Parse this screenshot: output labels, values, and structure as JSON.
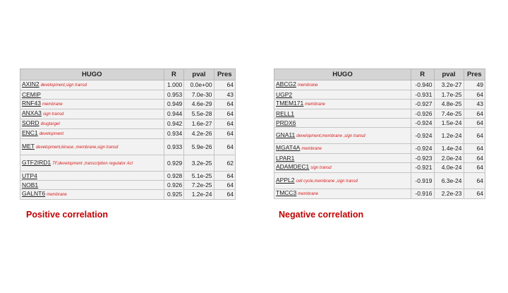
{
  "left": {
    "headers": {
      "hugo": "HUGO",
      "r": "R",
      "pval": "pval",
      "pres": "Pres"
    },
    "rows": [
      {
        "gene": "AXIN2",
        "tag": "development,sign transd",
        "r": "1.000",
        "pval": "0.0e+00",
        "pres": "64"
      },
      {
        "gene": "CEMIP",
        "tag": "",
        "r": "0.953",
        "pval": "7.0e-30",
        "pres": "43"
      },
      {
        "gene": "RNF43",
        "tag": "membrane",
        "r": "0.949",
        "pval": "4.6e-29",
        "pres": "64"
      },
      {
        "gene": "ANXA3",
        "tag": "sign transd",
        "r": "0.944",
        "pval": "5.5e-28",
        "pres": "64"
      },
      {
        "gene": "SORD",
        "tag": "drugtarget",
        "r": "0.942",
        "pval": "1.6e-27",
        "pres": "64"
      },
      {
        "gene": "ENC1",
        "tag": "development",
        "r": "0.934",
        "pval": "4.2e-26",
        "pres": "64"
      },
      {
        "gene": "MET",
        "tag": "development,kinase ,membrane,sign transd",
        "r": "0.933",
        "pval": "5.9e-26",
        "pres": "64"
      },
      {
        "gene": "GTF2IRD1",
        "tag": "TF,development ,transcription regulator Act",
        "r": "0.929",
        "pval": "3.2e-25",
        "pres": "62"
      },
      {
        "gene": "UTP4",
        "tag": "",
        "r": "0.928",
        "pval": "5.1e-25",
        "pres": "64"
      },
      {
        "gene": "NOB1",
        "tag": "",
        "r": "0.926",
        "pval": "7.2e-25",
        "pres": "64"
      },
      {
        "gene": "GALNT6",
        "tag": "membrane",
        "r": "0.925",
        "pval": "1.2e-24",
        "pres": "64"
      }
    ],
    "caption": "Positive correlation"
  },
  "right": {
    "headers": {
      "hugo": "HUGO",
      "r": "R",
      "pval": "pval",
      "pres": "Pres"
    },
    "rows": [
      {
        "gene": "ABCG2",
        "tag": "membrane",
        "r": "-0.940",
        "pval": "3.2e-27",
        "pres": "49"
      },
      {
        "gene": "UGP2",
        "tag": "",
        "r": "-0.931",
        "pval": "1.7e-25",
        "pres": "64"
      },
      {
        "gene": "TMEM171",
        "tag": "membrane",
        "r": "-0.927",
        "pval": "4.8e-25",
        "pres": "43"
      },
      {
        "gene": "RELL1",
        "tag": "",
        "r": "-0.926",
        "pval": "7.4e-25",
        "pres": "64"
      },
      {
        "gene": "PRDX6",
        "tag": "",
        "r": "-0.924",
        "pval": "1.5e-24",
        "pres": "64"
      },
      {
        "gene": "GNA11",
        "tag": "development,membrane ,sign transd",
        "r": "-0.924",
        "pval": "1.2e-24",
        "pres": "64"
      },
      {
        "gene": "MGAT4A",
        "tag": "membrane",
        "r": "-0.924",
        "pval": "1.4e-24",
        "pres": "64"
      },
      {
        "gene": "LPAR1",
        "tag": "",
        "r": "-0.923",
        "pval": "2.0e-24",
        "pres": "64"
      },
      {
        "gene": "ADAMDEC1",
        "tag": "sign transd",
        "r": "-0.921",
        "pval": "4.0e-24",
        "pres": "64"
      },
      {
        "gene": "APPL2",
        "tag": "cell cycle,membrane ,sign transd",
        "r": "-0.919",
        "pval": "6.3e-24",
        "pres": "64"
      },
      {
        "gene": "TMCC3",
        "tag": "membrane",
        "r": "-0.916",
        "pval": "2.2e-23",
        "pres": "64"
      }
    ],
    "caption": "Negative correlation"
  }
}
